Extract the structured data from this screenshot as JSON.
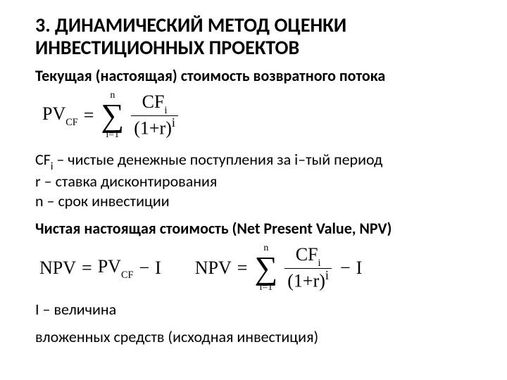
{
  "colors": {
    "text": "#000000",
    "background": "#ffffff"
  },
  "typography": {
    "title_fontsize_pt": 21,
    "body_fontsize_pt": 16,
    "formula_fontsize_pt": 20,
    "font_family_body": "Calibri",
    "font_family_math": "Times New Roman"
  },
  "title": "3. ДИНАМИЧЕСКИЙ МЕТОД ОЦЕНКИ ИНВЕСТИЦИОННЫХ ПРОЕКТОВ",
  "sub1": "Текущая (настоящая) стоимость возвратного потока",
  "formula_pvcf": {
    "lhs": "PV",
    "lhs_sub": "CF",
    "eq": "=",
    "sum_upper": "n",
    "sum_lower": "i=1",
    "num": "CF",
    "num_sub": "i",
    "den_base": "(1+r)",
    "den_exp": "i"
  },
  "defs": {
    "cf": "CF",
    "cf_sub": "i",
    "cf_text": " – чистые денежные поступления за i–тый период",
    "r": "r – ставка дисконтирования",
    "n": "n – срок инвестиции"
  },
  "sub2": "Чистая настоящая стоимость (Net Present Value, NPV)",
  "formula_npv1": {
    "lhs": "NPV",
    "eq": "=",
    "pv": "PV",
    "pv_sub": "CF",
    "minus": "−",
    "i": "I"
  },
  "formula_npv2": {
    "lhs": "NPV",
    "eq": "=",
    "sum_upper": "n",
    "sum_lower": "i=1",
    "num": "CF",
    "num_sub": "i",
    "den_base": "(1+r)",
    "den_exp": "i",
    "minus": "−",
    "i": "I"
  },
  "i_def1": "I – величина",
  "i_def2": "вложенных средств (исходная инвестиция)"
}
